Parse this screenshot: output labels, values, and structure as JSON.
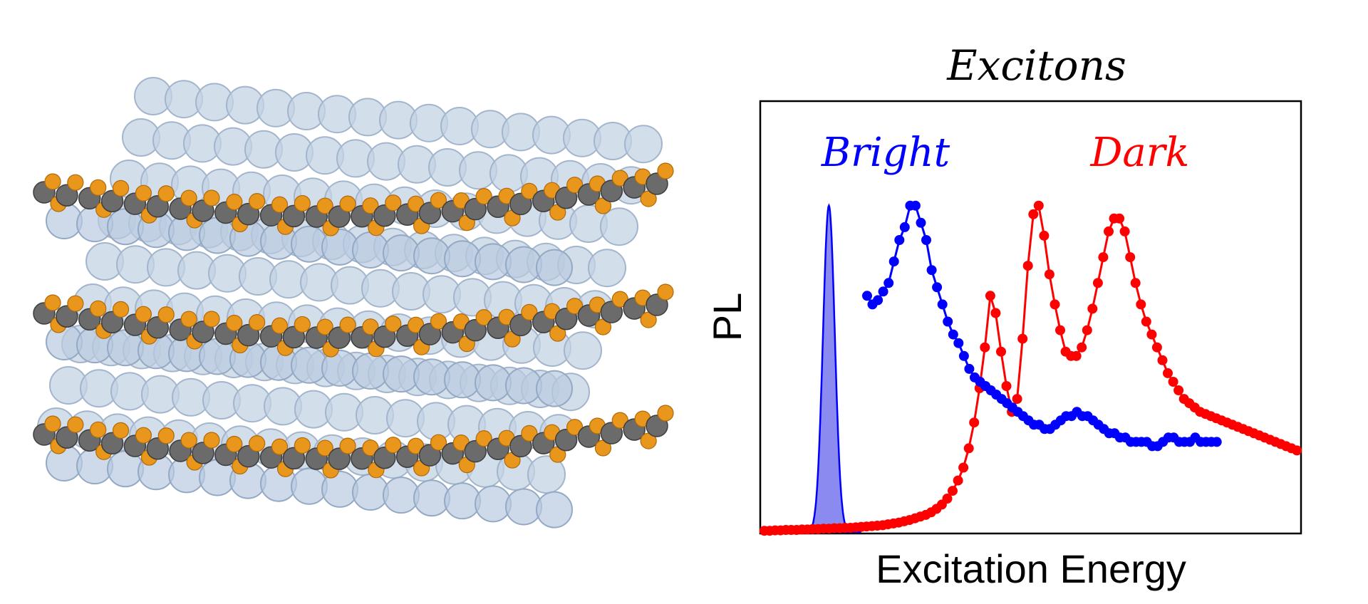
{
  "figure": {
    "structure_description": "",
    "colors": {
      "background": "#ffffff",
      "sphere_fill": "#b9cbe0",
      "sphere_stroke": "#93a9c4",
      "metal_atom": "#6b6b6b",
      "halide_atom": "#e8961c"
    }
  },
  "chart_data": {
    "type": "line",
    "title": "Excitons",
    "xlabel": "Excitation Energy",
    "ylabel": "PL",
    "xlim": [
      0,
      100
    ],
    "ylim": [
      0,
      100
    ],
    "grid": false,
    "x_ticks_shown": false,
    "y_ticks_shown": false,
    "annotations": [
      {
        "text": "Bright",
        "color": "#0000ff",
        "anchor_series": "blue dots"
      },
      {
        "text": "Dark",
        "color": "#ff0000",
        "anchor_series": "red dots"
      }
    ],
    "colors": {
      "bright": "#0000ff",
      "dark": "#ff0000",
      "peak_fill": "#8a8af0",
      "frame": "#000000"
    },
    "bright_emission_peak": {
      "style": "filled",
      "center_x": 12.5,
      "width_sigma": 1.1,
      "height": 76
    },
    "series": [
      {
        "color": "#0000ff",
        "style": "line-with-markers",
        "x": [
          19.6,
          20.7,
          21.7,
          22.7,
          23.7,
          24.7,
          25.7,
          26.7,
          27.7,
          28.7,
          29.7,
          30.7,
          31.7,
          32.7,
          33.7,
          34.7,
          35.7,
          36.7,
          37.7,
          38.7,
          39.7,
          40.7,
          41.7,
          42.7,
          43.7,
          44.7,
          45.7,
          46.7,
          47.7,
          48.7,
          49.7,
          50.7,
          51.7,
          52.7,
          53.7,
          54.7,
          55.7,
          56.7,
          57.7,
          58.7,
          59.7,
          60.7,
          61.7,
          62.7,
          63.7,
          64.7,
          65.7,
          66.7,
          67.7,
          68.7,
          69.7,
          70.7,
          71.7,
          72.7,
          73.7,
          74.7,
          75.7,
          76.7,
          77.7,
          84.2
        ],
        "y": [
          55,
          53,
          54,
          56,
          58,
          63,
          68,
          70,
          73,
          76,
          76,
          72,
          68,
          61,
          57,
          53,
          49,
          44,
          41,
          38,
          36,
          35,
          34,
          33,
          32,
          31,
          30,
          29,
          27,
          25,
          24,
          25,
          24,
          25,
          26,
          27,
          27,
          28,
          27,
          27,
          26,
          25,
          24,
          23,
          22,
          22,
          21,
          21,
          21,
          20,
          20,
          21,
          22,
          22,
          22,
          21,
          21,
          21,
          20,
          21
        ],
        "x_full": [
          19.6,
          20.6,
          21.6,
          22.6,
          23.6,
          24.6,
          25.6,
          26.6,
          27.6,
          28.6,
          29.6,
          30.6,
          31.6,
          32.6,
          33.6,
          34.6,
          35.6,
          36.6,
          37.6,
          38.6,
          39.6,
          40.6,
          41.6,
          42.6,
          43.6,
          44.6,
          45.6,
          46.6,
          47.6,
          48.6,
          49.6,
          50.6,
          51.6,
          52.6,
          53.6,
          54.6,
          55.6,
          56.6,
          57.6,
          58.6,
          59.6,
          60.6,
          61.6,
          62.6,
          63.6,
          64.6,
          65.6,
          66.6,
          67.6,
          68.6,
          69.6,
          70.6,
          71.6,
          72.6,
          73.6,
          74.6,
          75.6,
          76.6,
          77.6,
          78.6,
          79.6,
          80.6,
          81.6,
          82.6,
          83.6,
          84.6
        ],
        "y_full": [
          55,
          53,
          54,
          56,
          58,
          63,
          68,
          71,
          76,
          76,
          72,
          68,
          61,
          57,
          53,
          49,
          46,
          44,
          41,
          38,
          36,
          35,
          34,
          33,
          32,
          31,
          30,
          29,
          28,
          27,
          26,
          25,
          25,
          24,
          24,
          25,
          26,
          27,
          27,
          28,
          27,
          27,
          26,
          25,
          24,
          23,
          23,
          22,
          22,
          21,
          21,
          21,
          21,
          20,
          20,
          21,
          22,
          22,
          21,
          21,
          21,
          22,
          21,
          21,
          21,
          21
        ]
      },
      {
        "color": "#ff0000",
        "style": "line-with-markers",
        "x_full": [
          0.5,
          1.5,
          2.5,
          3.5,
          4.5,
          5.5,
          6.5,
          7.5,
          8.5,
          9.5,
          10.5,
          11.5,
          12.5,
          13.5,
          14.5,
          15.5,
          16.5,
          17.5,
          18.5,
          19.5,
          20.5,
          21.5,
          22.5,
          23.5,
          24.5,
          25.5,
          26.5,
          27.5,
          28.5,
          29.5,
          30.5,
          31.5,
          32.5,
          33.5,
          34.5,
          35.5,
          36.5,
          37.5,
          38.5,
          39.5,
          40.5,
          41.5,
          42.5,
          43.5,
          44.5,
          45.5,
          46.5,
          47.5,
          48.5,
          49.5,
          50.5,
          51.5,
          52.5,
          53.5,
          54.5,
          55.5,
          56.5,
          57.5,
          58.5,
          59.5,
          60.5,
          61.5,
          62.5,
          63.5,
          64.5,
          65.5,
          66.5,
          67.5,
          68.5,
          69.5,
          70.5,
          71.5,
          72.5,
          73.5,
          74.5,
          75.5,
          76.5,
          77.5,
          78.5,
          79.5,
          80.5,
          81.5,
          82.5,
          83.5,
          84.5,
          85.5,
          86.5,
          87.5,
          88.5,
          89.5,
          90.5,
          91.5,
          92.5,
          93.5,
          94.5,
          95.5,
          96.5,
          97.5,
          98.5,
          99.5
        ],
        "y_full": [
          0.3,
          0.3,
          0.4,
          0.4,
          0.5,
          0.5,
          0.5,
          0.6,
          0.6,
          0.7,
          0.7,
          0.8,
          0.8,
          0.9,
          0.9,
          1.0,
          1.0,
          1.1,
          1.2,
          1.3,
          1.4,
          1.5,
          1.6,
          1.8,
          2.0,
          2.2,
          2.5,
          2.8,
          3.2,
          3.6,
          4.0,
          4.6,
          5.4,
          6.4,
          7.8,
          9.6,
          12.0,
          15.0,
          19.5,
          25.5,
          33.5,
          43.0,
          55.0,
          51.0,
          42.0,
          34.0,
          28.0,
          31.0,
          45.0,
          62.0,
          74.0,
          76.0,
          69.0,
          60.0,
          53.0,
          47.0,
          42.0,
          41.0,
          41.0,
          43.0,
          47.0,
          52.0,
          58.0,
          64.0,
          70.0,
          73.0,
          73.0,
          70.0,
          64.0,
          58.0,
          53.0,
          49.0,
          46.0,
          43.0,
          40.0,
          37.0,
          35.0,
          33.0,
          31.0,
          30.0,
          29.0,
          28.0,
          27.5,
          27.0,
          26.5,
          26.0,
          25.5,
          25.0,
          24.5,
          24.0,
          23.5,
          23.0,
          22.5,
          22.0,
          21.5,
          21.0,
          20.5,
          20.0,
          19.5,
          19.0
        ]
      }
    ]
  }
}
